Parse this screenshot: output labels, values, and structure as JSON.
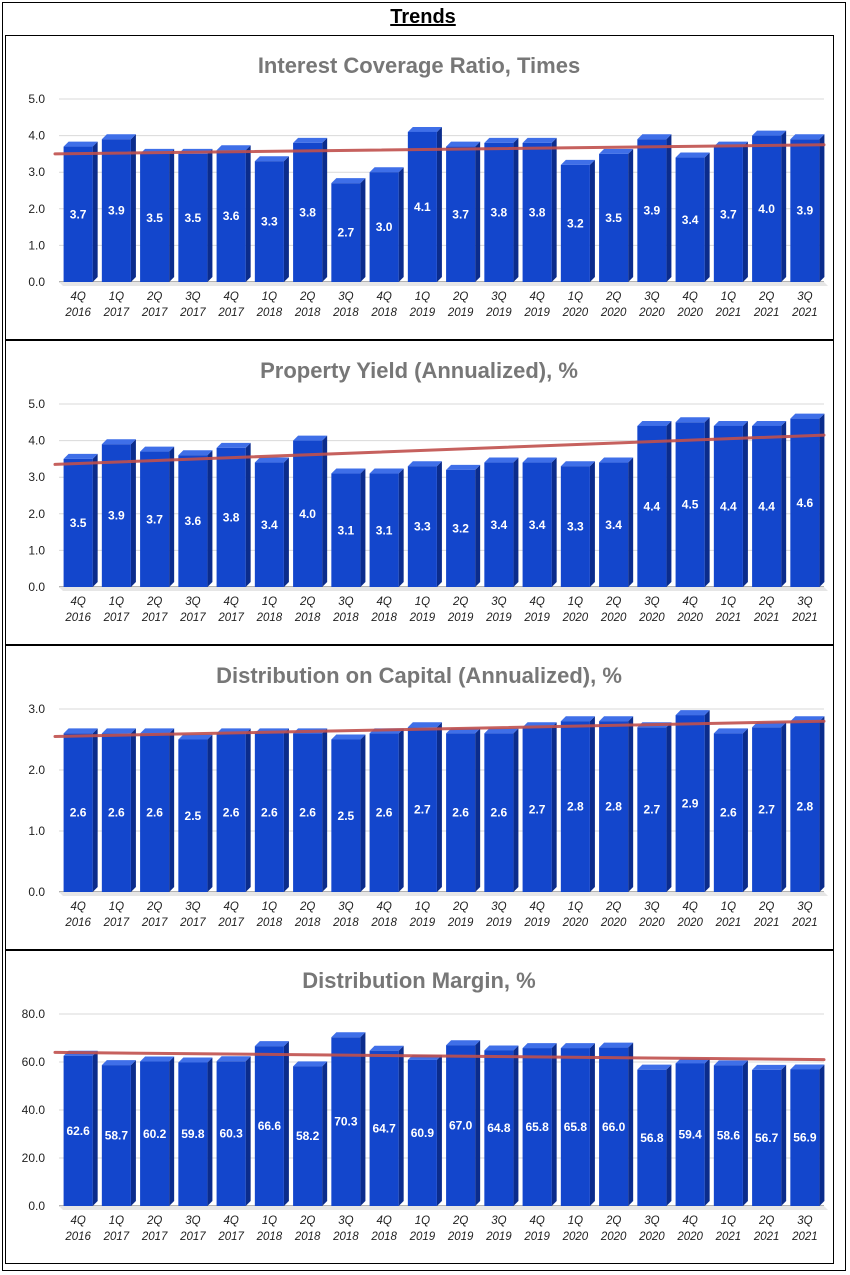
{
  "page": {
    "title": "Trends"
  },
  "colors": {
    "bar_front": "#1346cc",
    "bar_top": "#3f6fe8",
    "bar_side": "#0b2c8c",
    "trend": "#c0504d",
    "grid": "#d9d9d9",
    "title": "#777777"
  },
  "chart_data": [
    {
      "type": "bar",
      "title": "Interest Coverage Ratio, Times",
      "categories": [
        "4Q 2016",
        "1Q 2017",
        "2Q 2017",
        "3Q 2017",
        "4Q 2017",
        "1Q 2018",
        "2Q 2018",
        "3Q 2018",
        "4Q 2018",
        "1Q 2019",
        "2Q 2019",
        "3Q 2019",
        "4Q 2019",
        "1Q 2020",
        "2Q 2020",
        "3Q 2020",
        "4Q 2020",
        "1Q 2021",
        "2Q 2021",
        "3Q 2021"
      ],
      "values": [
        3.7,
        3.9,
        3.5,
        3.5,
        3.6,
        3.3,
        3.8,
        2.7,
        3.0,
        4.1,
        3.7,
        3.8,
        3.8,
        3.2,
        3.5,
        3.9,
        3.4,
        3.7,
        4.0,
        3.9
      ],
      "labels": [
        "3.7",
        "3.9",
        "3.5",
        "3.5",
        "3.6",
        "3.3",
        "3.8",
        "2.7",
        "3.0",
        "4.1",
        "3.7",
        "3.8",
        "3.8",
        "3.2",
        "3.5",
        "3.9",
        "3.4",
        "3.7",
        "4.0",
        "3.9"
      ],
      "yticks": [
        "0.0",
        "1.0",
        "2.0",
        "3.0",
        "4.0",
        "5.0"
      ],
      "ylim": [
        0,
        5
      ],
      "trendline": [
        3.5,
        3.75
      ]
    },
    {
      "type": "bar",
      "title": "Property Yield (Annualized), %",
      "categories": [
        "4Q 2016",
        "1Q 2017",
        "2Q 2017",
        "3Q 2017",
        "4Q 2017",
        "1Q 2018",
        "2Q 2018",
        "3Q 2018",
        "4Q 2018",
        "1Q 2019",
        "2Q 2019",
        "3Q 2019",
        "4Q 2019",
        "1Q 2020",
        "2Q 2020",
        "3Q 2020",
        "4Q 2020",
        "1Q 2021",
        "2Q 2021",
        "3Q 2021"
      ],
      "values": [
        3.5,
        3.9,
        3.7,
        3.6,
        3.8,
        3.4,
        4.0,
        3.1,
        3.1,
        3.3,
        3.2,
        3.4,
        3.4,
        3.3,
        3.4,
        4.4,
        4.5,
        4.4,
        4.4,
        4.6
      ],
      "labels": [
        "3.5",
        "3.9",
        "3.7",
        "3.6",
        "3.8",
        "3.4",
        "4.0",
        "3.1",
        "3.1",
        "3.3",
        "3.2",
        "3.4",
        "3.4",
        "3.3",
        "3.4",
        "4.4",
        "4.5",
        "4.4",
        "4.4",
        "4.6"
      ],
      "yticks": [
        "0.0",
        "1.0",
        "2.0",
        "3.0",
        "4.0",
        "5.0"
      ],
      "ylim": [
        0,
        5
      ],
      "trendline": [
        3.35,
        4.15
      ]
    },
    {
      "type": "bar",
      "title": "Distribution on Capital (Annualized), %",
      "categories": [
        "4Q 2016",
        "1Q 2017",
        "2Q 2017",
        "3Q 2017",
        "4Q 2017",
        "1Q 2018",
        "2Q 2018",
        "3Q 2018",
        "4Q 2018",
        "1Q 2019",
        "2Q 2019",
        "3Q 2019",
        "4Q 2019",
        "1Q 2020",
        "2Q 2020",
        "3Q 2020",
        "4Q 2020",
        "1Q 2021",
        "2Q 2021",
        "3Q 2021"
      ],
      "values": [
        2.6,
        2.6,
        2.6,
        2.5,
        2.6,
        2.6,
        2.6,
        2.5,
        2.6,
        2.7,
        2.6,
        2.6,
        2.7,
        2.8,
        2.8,
        2.7,
        2.9,
        2.6,
        2.7,
        2.8
      ],
      "labels": [
        "2.6",
        "2.6",
        "2.6",
        "2.5",
        "2.6",
        "2.6",
        "2.6",
        "2.5",
        "2.6",
        "2.7",
        "2.6",
        "2.6",
        "2.7",
        "2.8",
        "2.8",
        "2.7",
        "2.9",
        "2.6",
        "2.7",
        "2.8"
      ],
      "yticks": [
        "0.0",
        "1.0",
        "2.0",
        "3.0"
      ],
      "ylim": [
        0,
        3
      ],
      "trendline": [
        2.55,
        2.8
      ]
    },
    {
      "type": "bar",
      "title": "Distribution Margin, %",
      "categories": [
        "4Q 2016",
        "1Q 2017",
        "2Q 2017",
        "3Q 2017",
        "4Q 2017",
        "1Q 2018",
        "2Q 2018",
        "3Q 2018",
        "4Q 2018",
        "1Q 2019",
        "2Q 2019",
        "3Q 2019",
        "4Q 2019",
        "1Q 2020",
        "2Q 2020",
        "3Q 2020",
        "4Q 2020",
        "1Q 2021",
        "2Q 2021",
        "3Q 2021"
      ],
      "values": [
        62.6,
        58.7,
        60.2,
        59.8,
        60.3,
        66.6,
        58.2,
        70.3,
        64.7,
        60.9,
        67.0,
        64.8,
        65.8,
        65.8,
        66.0,
        56.8,
        59.4,
        58.6,
        56.7,
        56.9
      ],
      "labels": [
        "62.6",
        "58.7",
        "60.2",
        "59.8",
        "60.3",
        "66.6",
        "58.2",
        "70.3",
        "64.7",
        "60.9",
        "67.0",
        "64.8",
        "65.8",
        "65.8",
        "66.0",
        "56.8",
        "59.4",
        "58.6",
        "56.7",
        "56.9"
      ],
      "yticks": [
        "0.0",
        "20.0",
        "40.0",
        "60.0",
        "80.0"
      ],
      "ylim": [
        0,
        80
      ],
      "trendline": [
        64.0,
        61.0
      ]
    }
  ]
}
